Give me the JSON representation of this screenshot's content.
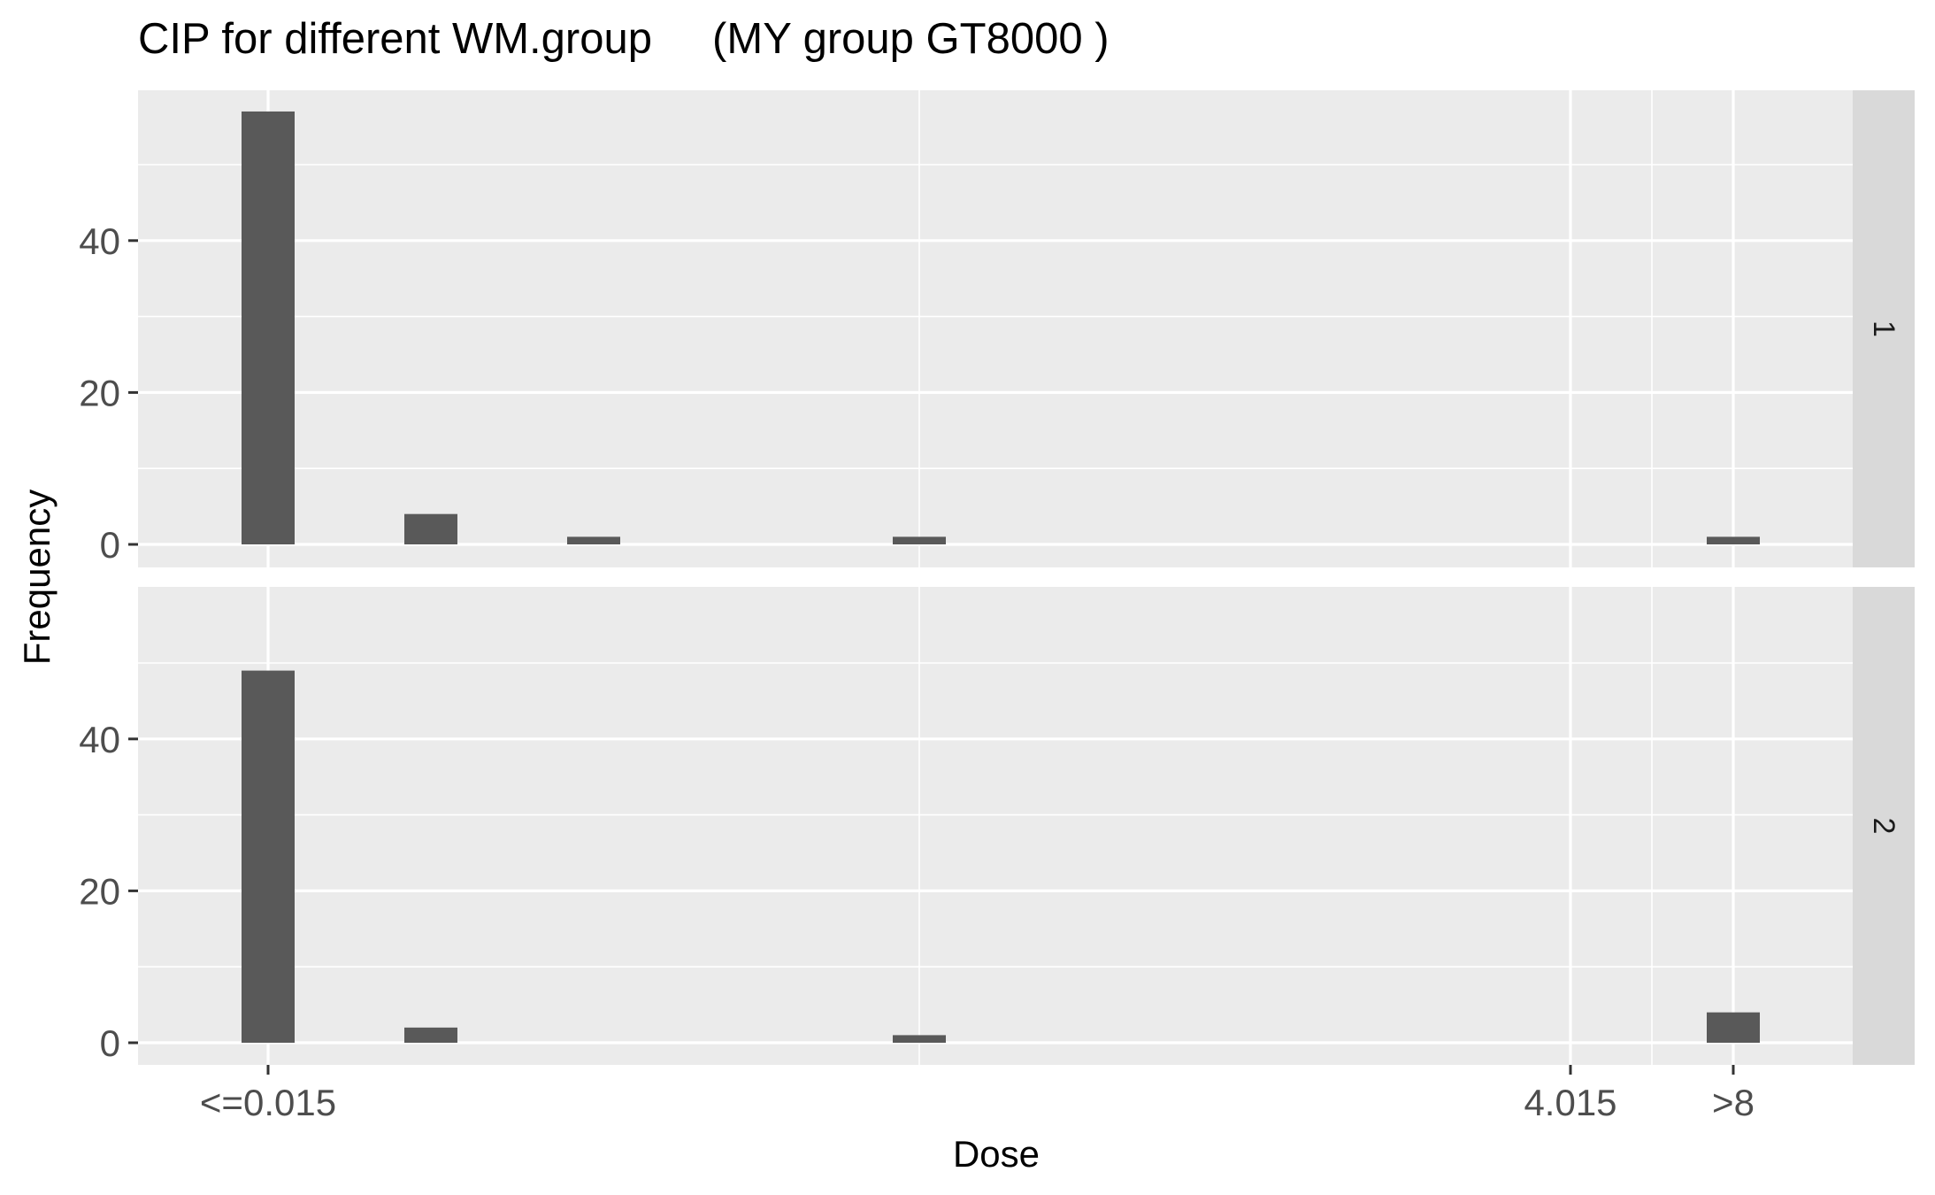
{
  "chart_data": {
    "type": "bar",
    "title": "CIP for different WM.group     (MY group GT8000 )",
    "xlabel": "Dose",
    "ylabel": "Frequency",
    "x_tick_labels": [
      "<=0.015",
      "4.015",
      ">8"
    ],
    "y_tick_labels": [
      "0",
      "20",
      "40"
    ],
    "ylim": [
      0,
      60
    ],
    "grid": true,
    "facets": [
      {
        "strip_label": "1",
        "bars": [
          {
            "x": 0.015,
            "value": 57
          },
          {
            "x": 0.515,
            "value": 4
          },
          {
            "x": 1.015,
            "value": 1
          },
          {
            "x": 2.015,
            "value": 1
          },
          {
            "x": 4.515,
            "value": 1
          }
        ]
      },
      {
        "strip_label": "2",
        "bars": [
          {
            "x": 0.015,
            "value": 49
          },
          {
            "x": 0.515,
            "value": 2
          },
          {
            "x": 2.015,
            "value": 1
          },
          {
            "x": 4.515,
            "value": 4
          }
        ]
      }
    ],
    "bar_color": "#595959",
    "panel_background": "#ebebeb",
    "strip_background": "#d9d9d9",
    "grid_color": "#ffffff"
  }
}
